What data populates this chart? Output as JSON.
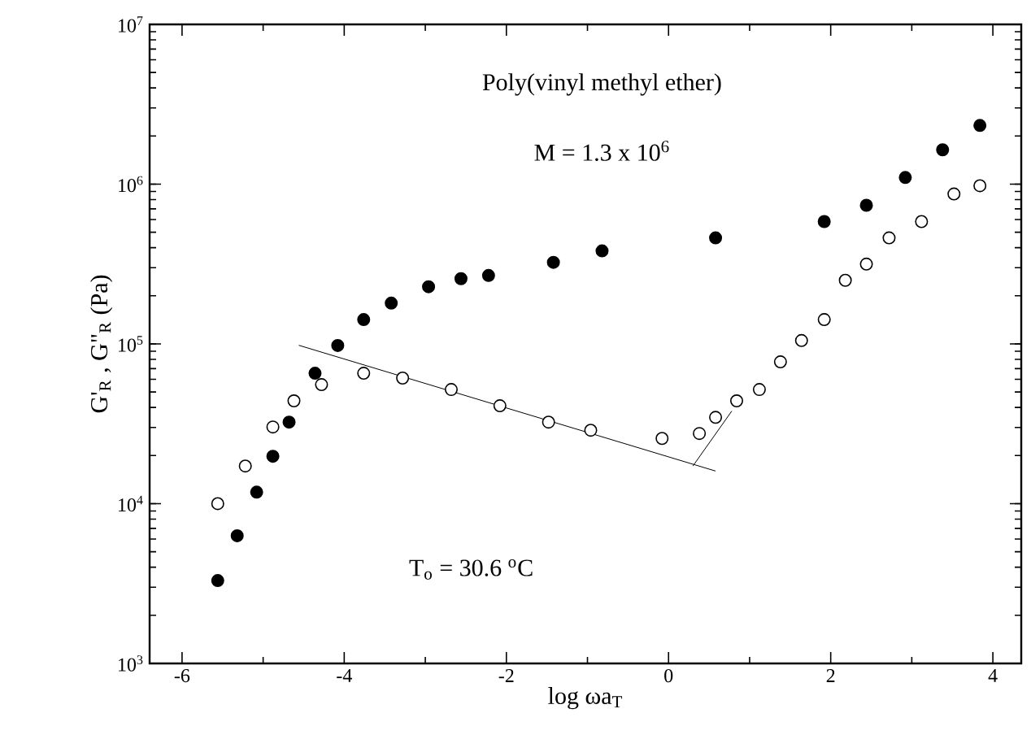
{
  "chart_data": {
    "type": "scatter",
    "xlabel": "log ωa$_{T}$",
    "ylabel": "G'$_{R}$ , G\"$_{R}$  (Pa)",
    "annotations": [
      "Poly(vinyl methyl ether)",
      "M = 1.3 x 10$^{6}$",
      "T$_{o}$ = 30.6 $^{o}$C"
    ],
    "log": "y",
    "xlim": [
      -6.4,
      4.35
    ],
    "xticks": [
      -6,
      -4,
      -2,
      0,
      2,
      4
    ],
    "ylim": [
      1000,
      10000000
    ],
    "yticks": [
      {
        "value": 1000,
        "label": "10$^{3}$"
      },
      {
        "value": 10000,
        "label": "10$^{4}$"
      },
      {
        "value": 100000,
        "label": "10$^{5}$"
      },
      {
        "value": 1000000,
        "label": "10$^{6}$"
      },
      {
        "value": 10000000,
        "label": "10$^{7}$"
      }
    ],
    "series": [
      {
        "color": "#000000",
        "marker": "circle",
        "x": [
          -5.56,
          -5.32,
          -5.08,
          -4.88,
          -4.68,
          -4.36,
          -4.08,
          -3.76,
          -3.42,
          -2.96,
          -2.56,
          -2.22,
          -1.42,
          -0.82,
          0.58,
          1.92,
          2.44,
          2.92,
          3.38,
          3.84
        ],
        "values": [
          3300,
          6300,
          11800,
          19800,
          32400,
          65500,
          97700,
          142000,
          180000,
          228000,
          256000,
          268000,
          324000,
          382000,
          461000,
          583000,
          737000,
          1100000,
          1640000,
          2330000
        ]
      },
      {
        "color": "#000000",
        "marker": "circle",
        "x": [
          -5.56,
          -5.22,
          -4.88,
          -4.62,
          -4.28,
          -3.76,
          -3.28,
          -2.68,
          -2.08,
          -1.48,
          -0.96,
          -0.08,
          0.38,
          0.58,
          0.84,
          1.12,
          1.38,
          1.64,
          1.92,
          2.18,
          2.44,
          2.72,
          3.12,
          3.52,
          3.84
        ],
        "values": [
          10000,
          17200,
          30200,
          44000,
          55600,
          65500,
          61100,
          51800,
          41000,
          32400,
          28800,
          25600,
          27500,
          34700,
          44000,
          51800,
          77200,
          105000,
          142000,
          250000,
          316000,
          461000,
          583000,
          868000,
          977000
        ]
      },
      {
        "type": "line",
        "marker": "none",
        "color": "#000000",
        "x": [
          -4.56,
          0.58
        ],
        "values": [
          98000,
          16000
        ]
      },
      {
        "type": "line",
        "marker": "none",
        "color": "#000000",
        "x": [
          0.3,
          0.78
        ],
        "values": [
          17200,
          38000
        ]
      }
    ]
  }
}
